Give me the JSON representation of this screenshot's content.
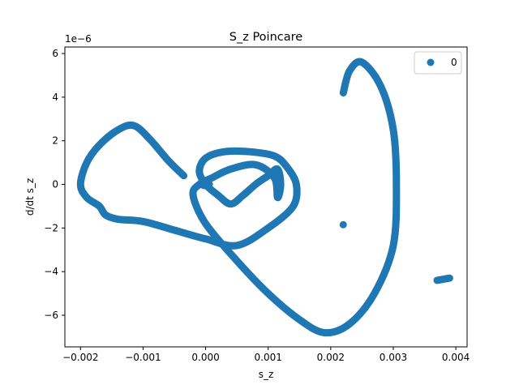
{
  "chart_data": {
    "type": "scatter",
    "title": "S_z Poincare",
    "xlabel": "s_z",
    "ylabel": "d/dt s_z",
    "y_scale_label": "1e−6",
    "xlim": [
      -0.00225,
      0.00418
    ],
    "ylim": [
      -7.45,
      6.3
    ],
    "x_ticks": [
      -0.002,
      -0.001,
      0.0,
      0.001,
      0.002,
      0.003,
      0.004
    ],
    "x_tick_labels": [
      "−0.002",
      "−0.001",
      "0.000",
      "0.001",
      "0.002",
      "0.003",
      "0.004"
    ],
    "y_ticks": [
      -6,
      -4,
      -2,
      0,
      2,
      4,
      6
    ],
    "y_tick_labels": [
      "−6",
      "−4",
      "−2",
      "0",
      "2",
      "4",
      "6"
    ],
    "grid": false,
    "legend_position": "top-right",
    "series": [
      {
        "name": "0",
        "color": "#1f77b4",
        "trajectory_xy": [
          [
            -0.00035,
            0.4
          ],
          [
            -0.0006,
            1.1
          ],
          [
            -0.0009,
            2.1
          ],
          [
            -0.00115,
            2.7
          ],
          [
            -0.0014,
            2.5
          ],
          [
            -0.0017,
            1.8
          ],
          [
            -0.0019,
            1.0
          ],
          [
            -0.002,
            0.0
          ],
          [
            -0.0019,
            -0.6
          ],
          [
            -0.0017,
            -1.0
          ],
          [
            -0.0016,
            -1.4
          ],
          [
            -0.0014,
            -1.6
          ],
          [
            -0.001,
            -1.7
          ],
          [
            -0.0005,
            -2.1
          ],
          [
            0.0,
            -2.5
          ],
          [
            0.0005,
            -2.8
          ],
          [
            0.001,
            -2.0
          ],
          [
            0.0014,
            -1.0
          ],
          [
            0.00145,
            0.0
          ],
          [
            0.0013,
            0.8
          ],
          [
            0.0011,
            1.3
          ],
          [
            0.0007,
            1.5
          ],
          [
            0.0003,
            1.5
          ],
          [
            0.0,
            1.2
          ],
          [
            -0.0001,
            0.6
          ],
          [
            0.0,
            0.0
          ],
          [
            0.0002,
            -0.5
          ],
          [
            0.0004,
            -0.9
          ],
          [
            0.0006,
            -0.5
          ],
          [
            0.0008,
            0.0
          ],
          [
            0.001,
            0.4
          ],
          [
            0.00115,
            0.7
          ],
          [
            0.0012,
            0.0
          ],
          [
            0.00115,
            -0.6
          ],
          [
            0.0011,
            0.3
          ],
          [
            0.0008,
            0.9
          ],
          [
            0.0004,
            0.7
          ],
          [
            0.0001,
            0.3
          ],
          [
            -0.0001,
            0.0
          ],
          [
            -0.0002,
            -0.5
          ],
          [
            0.0,
            -1.8
          ],
          [
            0.0005,
            -3.5
          ],
          [
            0.001,
            -5.0
          ],
          [
            0.0015,
            -6.2
          ],
          [
            0.0019,
            -6.8
          ],
          [
            0.0023,
            -6.4
          ],
          [
            0.0027,
            -5.0
          ],
          [
            0.003,
            -2.8
          ],
          [
            0.00305,
            0.0
          ],
          [
            0.003,
            2.5
          ],
          [
            0.0028,
            4.5
          ],
          [
            0.0025,
            5.6
          ],
          [
            0.0023,
            5.2
          ],
          [
            0.0022,
            4.2
          ]
        ],
        "cluster_center": [
          0.0,
          0.0
        ],
        "outlier_points": [
          [
            0.0022,
            -1.85
          ]
        ],
        "short_segment": [
          [
            0.0037,
            -4.4
          ],
          [
            0.0038,
            -4.35
          ],
          [
            0.0039,
            -4.3
          ]
        ]
      }
    ]
  }
}
